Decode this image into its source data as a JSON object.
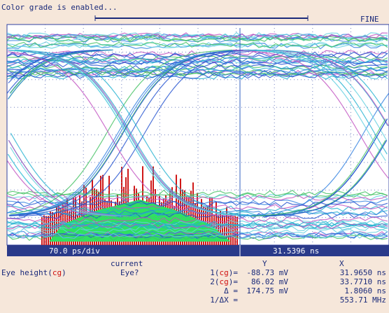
{
  "header": {
    "status": "Color grade is enabled...",
    "mode": "FINE"
  },
  "screen": {
    "timebase": "70.0 ps/div",
    "position": "31.5396 ns"
  },
  "measurement": {
    "label": "Eye height(",
    "label_tag": "cg",
    "label_close": ")",
    "state_title": "current",
    "state": "Eye?",
    "col_y": "Y",
    "col_x": "X",
    "rows": [
      {
        "name": "1(",
        "tag": "cg",
        "close": ")=",
        "y": "-88.73 mV",
        "x": "31.9650 ns"
      },
      {
        "name": "2(",
        "tag": "cg",
        "close": ")=",
        "y": "86.02 mV",
        "x": "33.7710 ns"
      },
      {
        "name": "Δ =",
        "y": "174.75 mV",
        "x": "1.8060 ns"
      },
      {
        "name": "1/ΔX =",
        "x": "553.71 MHz"
      }
    ]
  }
}
